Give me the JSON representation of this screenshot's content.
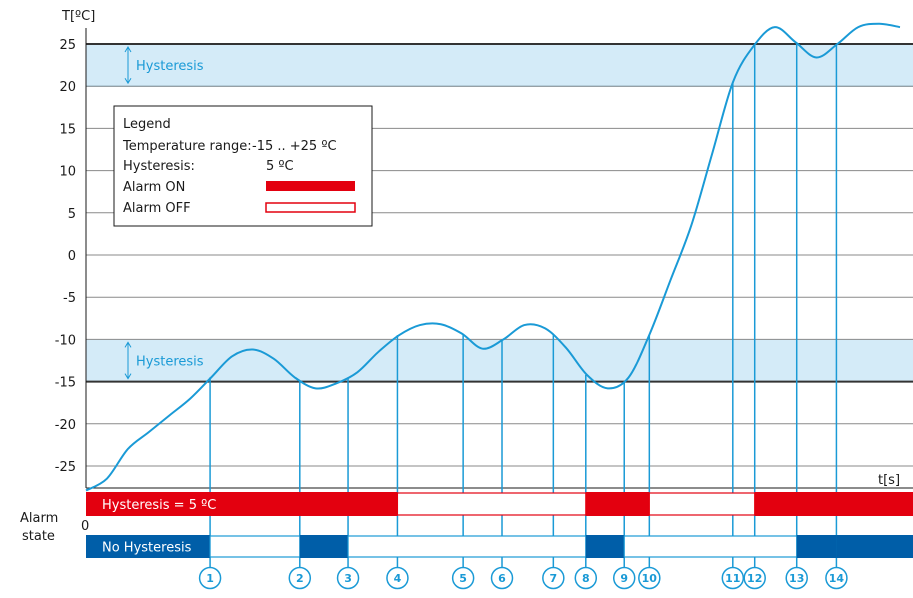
{
  "colors": {
    "curve": "#1a9ad6",
    "band": "#d4ebf8",
    "band_edge": "#7cc7ee",
    "alarm_on": "#e3000f",
    "alarm_off": "#e3000f",
    "no_hyst": "#005ea8",
    "grid": "#555555",
    "axis": "#1a1a1a"
  },
  "chart_data": {
    "type": "line",
    "ylabel": "T[ºC]",
    "xlabel": "t[s]",
    "ylim": [
      -28,
      27.5
    ],
    "yticks": [
      "25",
      "20",
      "15",
      "10",
      "5",
      "0",
      "-5",
      "-10",
      "-15",
      "-20",
      "-25"
    ],
    "ytick_values": [
      25,
      20,
      15,
      10,
      5,
      0,
      -5,
      -10,
      -15,
      -20,
      -25
    ],
    "thresholds": [
      25,
      -15
    ],
    "hysteresis_bands": [
      {
        "from": 20,
        "to": 25,
        "label": "Hysteresis"
      },
      {
        "from": -15,
        "to": -10,
        "label": "Hysteresis"
      }
    ],
    "series": [
      {
        "values": [
          -27.9,
          -26.5,
          -23,
          -21,
          -19,
          -17,
          -14.5,
          -12,
          -11.2,
          -12.3,
          -14.5,
          -15.8,
          -15.2,
          -13.9,
          -11.5,
          -9.5,
          -8.3,
          -8.2,
          -9.3,
          -11.1,
          -10,
          -8.3,
          -8.7,
          -11,
          -14.2,
          -15.8,
          -14.5,
          -9.4,
          -3,
          3.5,
          12,
          20.5,
          24.8,
          27,
          25.2,
          23.4,
          25,
          27,
          27.4,
          27
        ]
      }
    ],
    "markers": [
      {
        "label": "1",
        "value": -14.5
      },
      {
        "label": "2",
        "value": -15
      },
      {
        "label": "3",
        "value": -14.5
      },
      {
        "label": "4",
        "value": -9.5
      },
      {
        "label": "5",
        "value": -9.5
      },
      {
        "label": "6",
        "value": -10
      },
      {
        "label": "7",
        "value": -9.5
      },
      {
        "label": "8",
        "value": -14.2
      },
      {
        "label": "9",
        "value": -15
      },
      {
        "label": "10",
        "value": -9.4
      },
      {
        "label": "11",
        "value": 20.5
      },
      {
        "label": "12",
        "value": 25
      },
      {
        "label": "13",
        "value": 25
      },
      {
        "label": "14",
        "value": 25
      }
    ],
    "alarm_rows": [
      {
        "label": "Hysteresis = 5 ºC",
        "segments": [
          {
            "from": "start",
            "to": "4",
            "state": "on"
          },
          {
            "from": "4",
            "to": "8",
            "state": "off"
          },
          {
            "from": "8",
            "to": "10",
            "state": "on"
          },
          {
            "from": "10",
            "to": "12",
            "state": "off"
          },
          {
            "from": "12",
            "to": "end",
            "state": "on"
          }
        ]
      },
      {
        "label": "No Hysteresis",
        "segments": [
          {
            "from": "start",
            "to": "1",
            "state": "on"
          },
          {
            "from": "1",
            "to": "2",
            "state": "off"
          },
          {
            "from": "2",
            "to": "3",
            "state": "on"
          },
          {
            "from": "3",
            "to": "8",
            "state": "off"
          },
          {
            "from": "8",
            "to": "9",
            "state": "on"
          },
          {
            "from": "9",
            "to": "13",
            "state": "off"
          },
          {
            "from": "13",
            "to": "14",
            "state": "on"
          },
          {
            "from": "14",
            "to": "end",
            "state": "on"
          }
        ]
      }
    ],
    "alarm_axis_label": "Alarm\nstate",
    "alarm_zero_label": "0",
    "legend": {
      "title": "Legend",
      "rows": [
        {
          "label": "Temperature range:",
          "value": "-15 .. +25 ºC"
        },
        {
          "label": "Hysteresis:",
          "value": "5 ºC"
        },
        {
          "label": "Alarm ON",
          "swatch": "on"
        },
        {
          "label": "Alarm OFF",
          "swatch": "off"
        }
      ]
    }
  }
}
